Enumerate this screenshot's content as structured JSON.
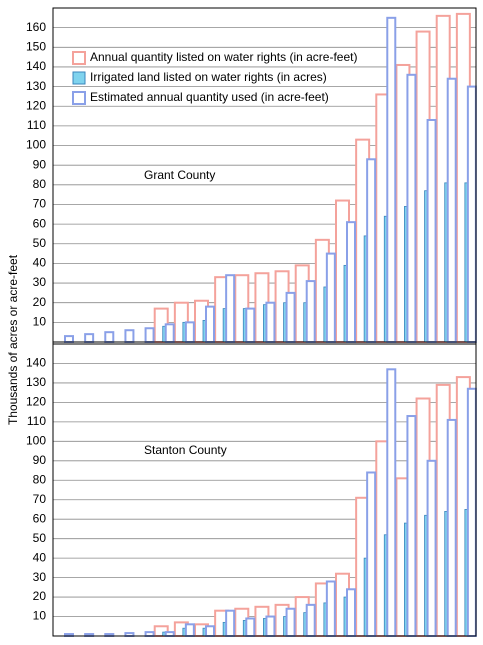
{
  "chart_data": [
    {
      "type": "bar",
      "annotation": "Grant County",
      "ylabel": "Thousands of acres or acre-feet",
      "categories": [
        null,
        null,
        null,
        null,
        null,
        null,
        null,
        null,
        null,
        null,
        null,
        null,
        null,
        null,
        null,
        null,
        null,
        null,
        null,
        null,
        null
      ],
      "series": [
        {
          "name": "Annual quantity listed on water rights (in acre-feet)",
          "color": "#f4a29b",
          "values": [
            0,
            0,
            0,
            0,
            0,
            17,
            20,
            21,
            33,
            34,
            35,
            36,
            39,
            52,
            72,
            103,
            126,
            141,
            158,
            166,
            167
          ]
        },
        {
          "name": "Irrigated land listed on water rights (in acres)",
          "color": "#7fd3ee",
          "values": [
            0,
            0,
            0,
            0,
            0,
            8,
            10,
            11,
            17,
            17,
            19,
            20,
            20,
            28,
            39,
            54,
            64,
            69,
            77,
            81,
            81
          ]
        },
        {
          "name": "Estimated annual quantity used (in acre-feet)",
          "color": "#8aa0e8",
          "values": [
            3,
            4,
            5,
            6,
            7,
            9,
            10,
            18,
            34,
            17,
            20,
            25,
            31,
            45,
            61,
            93,
            165,
            136,
            113,
            134,
            130
          ]
        }
      ],
      "ylim": [
        0,
        170
      ],
      "yticks": [
        10,
        20,
        30,
        40,
        50,
        60,
        70,
        80,
        90,
        100,
        110,
        120,
        130,
        140,
        150,
        160
      ],
      "grid": true
    },
    {
      "type": "bar",
      "annotation": "Stanton County",
      "categories": [
        null,
        null,
        null,
        null,
        null,
        null,
        null,
        null,
        null,
        null,
        null,
        null,
        null,
        null,
        null,
        null,
        null,
        null,
        null,
        null,
        null
      ],
      "series": [
        {
          "color": "#f4a29b",
          "values": [
            0,
            0,
            0,
            0,
            0,
            5,
            7,
            6,
            13,
            14,
            15,
            16,
            20,
            27,
            32,
            71,
            100,
            81,
            122,
            129,
            133
          ]
        },
        {
          "color": "#7fd3ee",
          "values": [
            0,
            0,
            0,
            0,
            0,
            2,
            4,
            4,
            7,
            8,
            9,
            10,
            12,
            17,
            20,
            40,
            52,
            58,
            62,
            64,
            65
          ]
        },
        {
          "color": "#8aa0e8",
          "values": [
            1,
            1,
            1,
            1.5,
            2,
            2,
            6,
            5,
            13,
            9,
            10,
            14,
            16,
            28,
            24,
            84,
            137,
            113,
            90,
            111,
            127
          ]
        }
      ],
      "ylim": [
        0,
        150
      ],
      "yticks": [
        10,
        20,
        30,
        40,
        50,
        60,
        70,
        80,
        90,
        100,
        110,
        120,
        130,
        140
      ],
      "grid": true
    }
  ]
}
